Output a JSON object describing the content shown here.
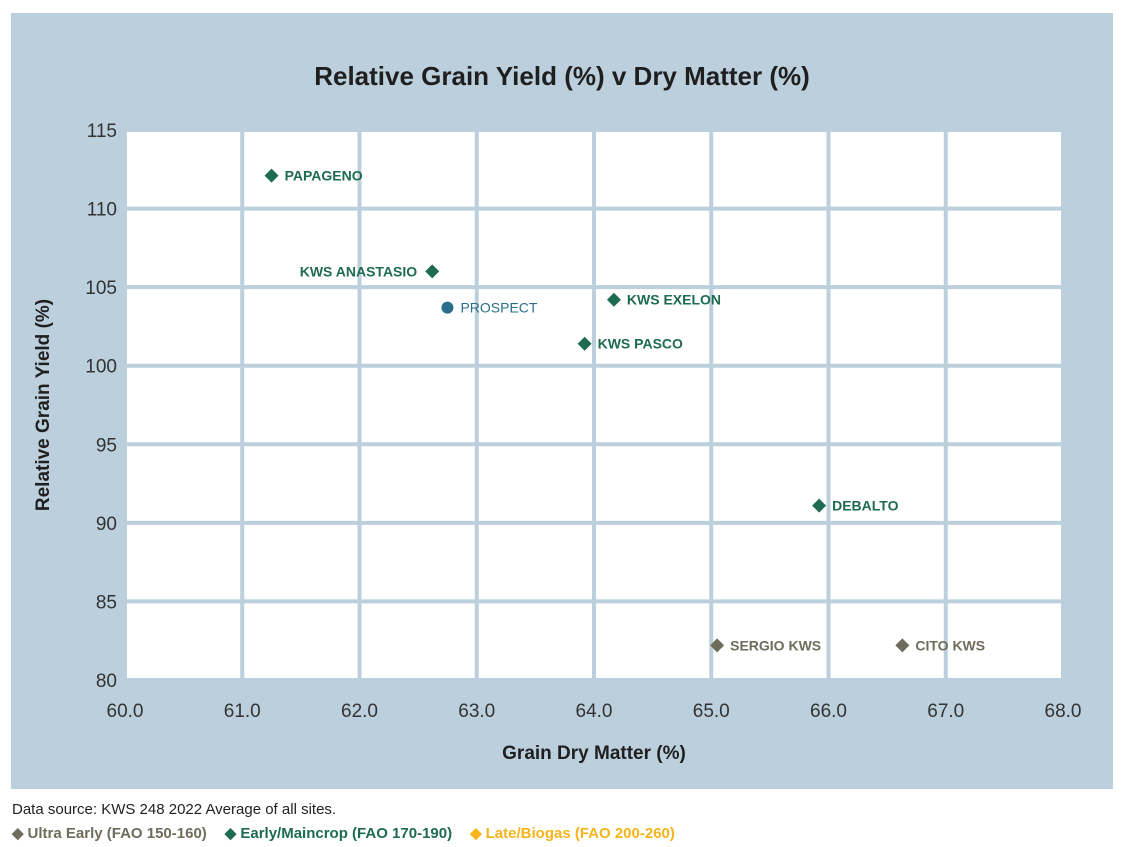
{
  "colors": {
    "panel_bg": "#bccfdc",
    "plot_bg": "#ffffff",
    "grid": "#bccfdc",
    "ultra_early": "#6e6c5a",
    "early_maincrop": "#1e6b52",
    "late_biogas": "#f5b41a",
    "prospect": "#2a6f8a"
  },
  "chart_data": {
    "type": "scatter",
    "title": "Relative Grain Yield (%) v Dry Matter (%)",
    "xlabel": "Grain Dry Matter (%)",
    "ylabel": "Relative Grain Yield (%)",
    "xlim": [
      60,
      68
    ],
    "ylim": [
      80,
      115
    ],
    "xticks": [
      "60.0",
      "61.0",
      "62.0",
      "63.0",
      "64.0",
      "65.0",
      "66.0",
      "67.0",
      "68.0"
    ],
    "yticks": [
      "80",
      "85",
      "90",
      "95",
      "100",
      "105",
      "110",
      "115"
    ],
    "grid": true,
    "legend_position": "bottom",
    "points": [
      {
        "label": "PAPAGENO",
        "x": 61.25,
        "y": 112.1,
        "group": "early_maincrop",
        "marker": "diamond",
        "label_side": "right"
      },
      {
        "label": "KWS ANASTASIO",
        "x": 62.62,
        "y": 106.0,
        "group": "early_maincrop",
        "marker": "diamond",
        "label_side": "left"
      },
      {
        "label": "PROSPECT",
        "x": 62.75,
        "y": 103.7,
        "group": "prospect",
        "marker": "circle",
        "label_side": "right"
      },
      {
        "label": "KWS EXELON",
        "x": 64.17,
        "y": 104.2,
        "group": "early_maincrop",
        "marker": "diamond",
        "label_side": "right"
      },
      {
        "label": "KWS PASCO",
        "x": 63.92,
        "y": 101.4,
        "group": "early_maincrop",
        "marker": "diamond",
        "label_side": "right"
      },
      {
        "label": "DEBALTO",
        "x": 65.92,
        "y": 91.1,
        "group": "early_maincrop",
        "marker": "diamond",
        "label_side": "right"
      },
      {
        "label": "SERGIO KWS",
        "x": 65.05,
        "y": 82.2,
        "group": "ultra_early",
        "marker": "diamond",
        "label_side": "right"
      },
      {
        "label": "CITO KWS",
        "x": 66.63,
        "y": 82.2,
        "group": "ultra_early",
        "marker": "diamond",
        "label_side": "right"
      }
    ]
  },
  "footer": {
    "source": "Data source: KWS 248  2022 Average of all sites.",
    "legend": [
      {
        "marker": "◆",
        "label": "Ultra Early (FAO 150-160)",
        "color": "#6e6c5a"
      },
      {
        "marker": "◆",
        "label": "Early/Maincrop (FAO 170-190)",
        "color": "#1e6b52"
      },
      {
        "marker": "◆",
        "label": "Late/Biogas (FAO 200-260)",
        "color": "#f5b41a"
      }
    ]
  }
}
